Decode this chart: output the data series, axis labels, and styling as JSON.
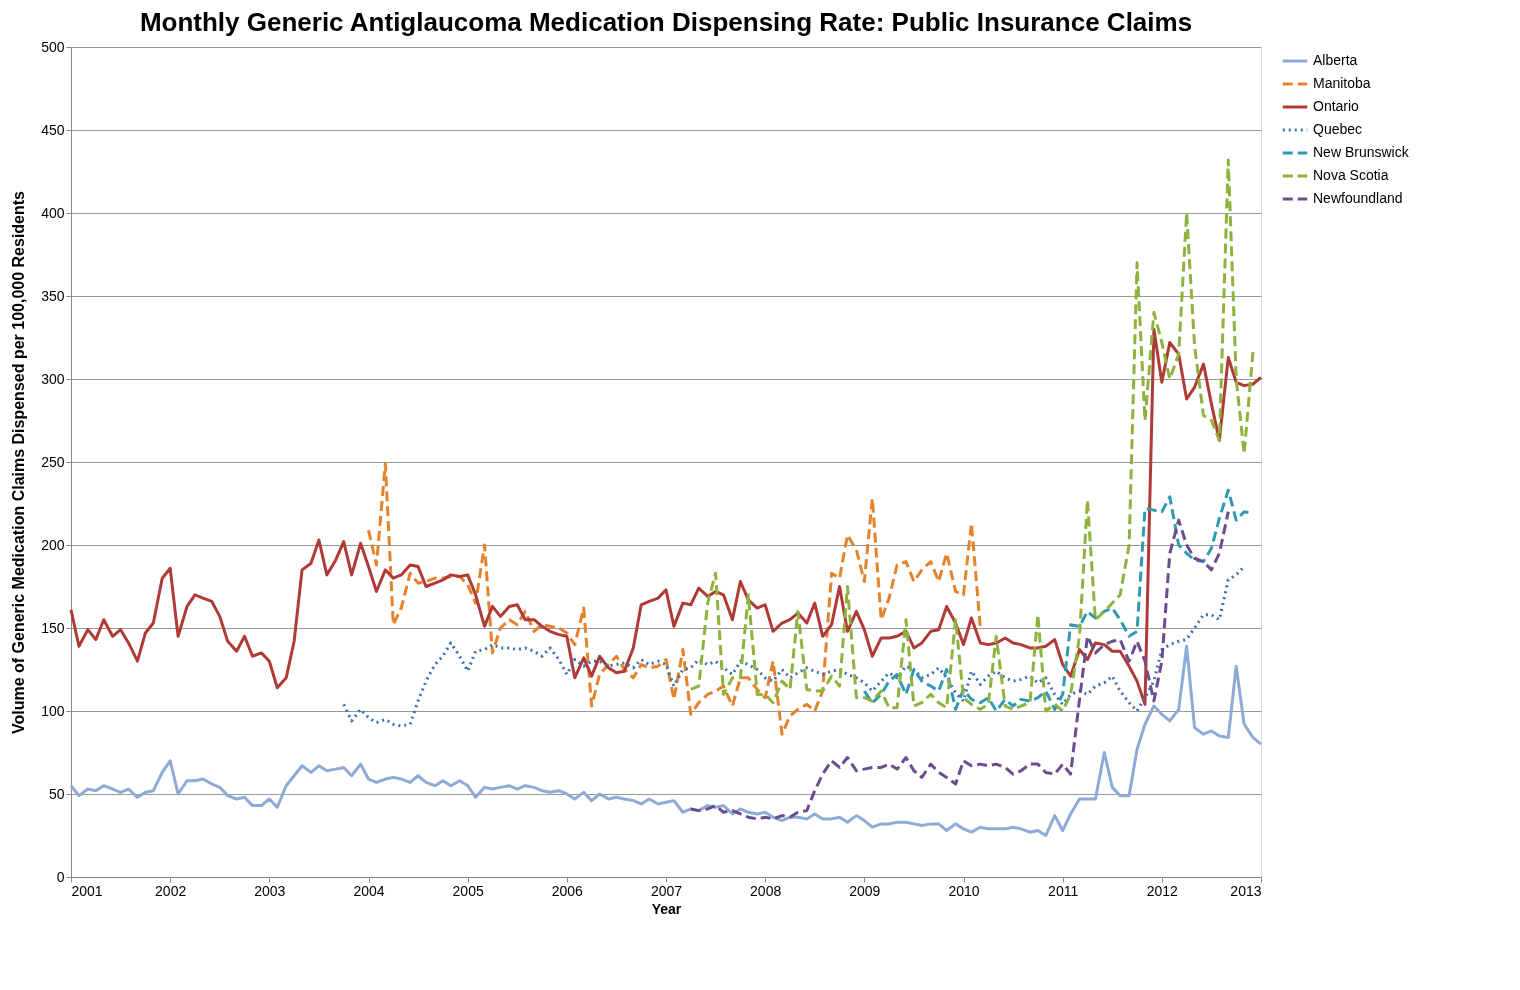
{
  "chart_data": {
    "type": "line",
    "title": "Monthly Generic Antiglaucoma Medication Dispensing Rate: Public Insurance Claims",
    "xlabel": "Year",
    "ylabel": "Volume of Generic Medication Claims Dispensed per 100,000 Residents",
    "xlim": [
      2001,
      2013
    ],
    "xticks": [
      2001,
      2002,
      2003,
      2004,
      2005,
      2006,
      2007,
      2008,
      2009,
      2010,
      2011,
      2012,
      2013
    ],
    "ylim": [
      0,
      500
    ],
    "yticks": [
      0,
      50,
      100,
      150,
      200,
      250,
      300,
      350,
      400,
      450,
      500
    ],
    "grid": "y",
    "legend": "right",
    "marker": "none",
    "x": [
      2001,
      2001.08,
      2001.17,
      2001.25,
      2001.33,
      2001.42,
      2001.5,
      2001.58,
      2001.67,
      2001.75,
      2001.83,
      2001.92,
      2002,
      2002.08,
      2002.17,
      2002.25,
      2002.33,
      2002.42,
      2002.5,
      2002.58,
      2002.67,
      2002.75,
      2002.83,
      2002.92,
      2003,
      2003.08,
      2003.17,
      2003.25,
      2003.33,
      2003.42,
      2003.5,
      2003.58,
      2003.67,
      2003.75,
      2003.83,
      2003.92,
      2004,
      2004.08,
      2004.17,
      2004.25,
      2004.33,
      2004.42,
      2004.5,
      2004.58,
      2004.67,
      2004.75,
      2004.83,
      2004.92,
      2005,
      2005.08,
      2005.17,
      2005.25,
      2005.33,
      2005.42,
      2005.5,
      2005.58,
      2005.67,
      2005.75,
      2005.83,
      2005.92,
      2006,
      2006.08,
      2006.17,
      2006.25,
      2006.33,
      2006.42,
      2006.5,
      2006.58,
      2006.67,
      2006.75,
      2006.83,
      2006.92,
      2007,
      2007.08,
      2007.17,
      2007.25,
      2007.33,
      2007.42,
      2007.5,
      2007.58,
      2007.67,
      2007.75,
      2007.83,
      2007.92,
      2008,
      2008.08,
      2008.17,
      2008.25,
      2008.33,
      2008.42,
      2008.5,
      2008.58,
      2008.67,
      2008.75,
      2008.83,
      2008.92,
      2009,
      2009.08,
      2009.17,
      2009.25,
      2009.33,
      2009.42,
      2009.5,
      2009.58,
      2009.67,
      2009.75,
      2009.83,
      2009.92,
      2010,
      2010.08,
      2010.17,
      2010.25,
      2010.33,
      2010.42,
      2010.5,
      2010.58,
      2010.67,
      2010.75,
      2010.83,
      2010.92,
      2011,
      2011.08,
      2011.17,
      2011.25,
      2011.33,
      2011.42,
      2011.5,
      2011.58,
      2011.67,
      2011.75,
      2011.83,
      2011.92,
      2012,
      2012.08,
      2012.17,
      2012.25,
      2012.33,
      2012.42,
      2012.5,
      2012.58,
      2012.67,
      2012.75,
      2012.83,
      2012.92,
      2013
    ],
    "series": [
      {
        "name": "Alberta",
        "color": "#8eaad6",
        "line_style": "solid",
        "values": [
          55,
          49,
          53,
          52,
          55,
          53,
          51,
          53,
          48,
          51,
          52,
          63,
          70,
          50,
          58,
          58,
          59,
          56,
          54,
          49,
          47,
          48,
          43,
          43,
          47,
          42,
          55,
          61,
          67,
          63,
          67,
          64,
          65,
          66,
          61,
          68,
          59,
          57,
          59,
          60,
          59,
          57,
          61,
          57,
          55,
          58,
          55,
          58,
          55,
          48,
          54,
          53,
          54,
          55,
          53,
          55,
          54,
          52,
          51,
          52,
          50,
          47,
          51,
          46,
          50,
          47,
          48,
          47,
          46,
          44,
          47,
          44,
          45,
          46,
          39,
          41,
          40,
          43,
          42,
          43,
          38,
          41,
          39,
          38,
          39,
          36,
          34,
          36,
          36,
          35,
          38,
          35,
          35,
          36,
          33,
          37,
          34,
          30,
          32,
          32,
          33,
          33,
          32,
          31,
          32,
          32,
          28,
          32,
          29,
          27,
          30,
          29,
          29,
          29,
          30,
          29,
          27,
          28,
          25,
          37,
          28,
          38,
          47,
          47,
          47,
          75,
          54,
          49,
          49,
          77,
          92,
          103,
          98,
          94,
          101,
          139,
          90,
          86,
          88,
          85,
          84,
          127,
          92,
          84,
          80
        ]
      },
      {
        "name": "Manitoba",
        "color": "#e4832a",
        "line_style": "dashed",
        "x": [
          2004,
          2004.08,
          2004.17,
          2004.25,
          2004.33,
          2004.42,
          2004.5,
          2004.58,
          2004.67,
          2004.75,
          2004.83,
          2004.92,
          2005,
          2005.08,
          2005.17,
          2005.25,
          2005.33,
          2005.42,
          2005.5,
          2005.58,
          2005.67,
          2005.75,
          2005.83,
          2005.92,
          2006,
          2006.08,
          2006.17,
          2006.25,
          2006.33,
          2006.42,
          2006.5,
          2006.58,
          2006.67,
          2006.75,
          2006.83,
          2006.92,
          2007,
          2007.08,
          2007.17,
          2007.25,
          2007.33,
          2007.42,
          2007.5,
          2007.58,
          2007.67,
          2007.75,
          2007.83,
          2007.92,
          2008,
          2008.08,
          2008.17,
          2008.25,
          2008.33,
          2008.42,
          2008.5,
          2008.58,
          2008.67,
          2008.75,
          2008.83,
          2008.92,
          2009,
          2009.08,
          2009.17,
          2009.25,
          2009.33,
          2009.42,
          2009.5,
          2009.58,
          2009.67,
          2009.75,
          2009.83,
          2009.92,
          2010,
          2010.08,
          2010.17
        ],
        "values": [
          209,
          188,
          249,
          152,
          162,
          183,
          177,
          178,
          180,
          180,
          181,
          181,
          176,
          165,
          200,
          135,
          150,
          155,
          152,
          160,
          148,
          152,
          151,
          150,
          147,
          140,
          162,
          103,
          122,
          128,
          133,
          125,
          120,
          128,
          126,
          127,
          131,
          107,
          137,
          98,
          105,
          110,
          112,
          115,
          103,
          120,
          120,
          113,
          108,
          130,
          86,
          97,
          101,
          104,
          100,
          112,
          183,
          180,
          206,
          197,
          178,
          228,
          155,
          168,
          188,
          190,
          178,
          185,
          190,
          178,
          195,
          172,
          170,
          213,
          150
        ]
      },
      {
        "name": "Ontario",
        "color": "#b03a36",
        "line_style": "solid",
        "values": [
          161,
          139,
          149,
          143,
          155,
          145,
          149,
          141,
          130,
          147,
          153,
          180,
          186,
          145,
          163,
          170,
          168,
          166,
          157,
          142,
          136,
          145,
          133,
          135,
          130,
          114,
          120,
          142,
          185,
          189,
          203,
          182,
          191,
          202,
          182,
          201,
          187,
          172,
          185,
          180,
          182,
          188,
          187,
          175,
          177,
          179,
          182,
          181,
          182,
          170,
          151,
          163,
          157,
          163,
          164,
          155,
          155,
          151,
          148,
          146,
          145,
          120,
          132,
          121,
          133,
          126,
          123,
          124,
          138,
          164,
          166,
          168,
          173,
          151,
          165,
          164,
          174,
          169,
          172,
          170,
          155,
          178,
          167,
          162,
          164,
          148,
          153,
          155,
          159,
          153,
          165,
          145,
          152,
          175,
          148,
          160,
          149,
          133,
          144,
          144,
          145,
          148,
          138,
          141,
          148,
          149,
          163,
          153,
          140,
          156,
          141,
          140,
          141,
          144,
          141,
          140,
          138,
          138,
          139,
          143,
          128,
          121,
          137,
          131,
          141,
          140,
          136,
          136,
          127,
          118,
          104,
          330,
          298,
          322,
          315,
          288,
          295,
          309,
          285,
          263,
          313,
          298,
          296,
          297,
          301
        ]
      },
      {
        "name": "Quebec",
        "color": "#3a6fb0",
        "line_style": "dotted",
        "x": [
          2003.75,
          2003.83,
          2003.92,
          2004,
          2004.08,
          2004.17,
          2004.25,
          2004.33,
          2004.42,
          2004.5,
          2004.58,
          2004.67,
          2004.75,
          2004.83,
          2004.92,
          2005,
          2005.08,
          2005.17,
          2005.25,
          2005.33,
          2005.42,
          2005.5,
          2005.58,
          2005.67,
          2005.75,
          2005.83,
          2005.92,
          2006,
          2006.08,
          2006.17,
          2006.25,
          2006.33,
          2006.42,
          2006.5,
          2006.58,
          2006.67,
          2006.75,
          2006.83,
          2006.92,
          2007,
          2007.08,
          2007.17,
          2007.25,
          2007.33,
          2007.42,
          2007.5,
          2007.58,
          2007.67,
          2007.75,
          2007.83,
          2007.92,
          2008,
          2008.08,
          2008.17,
          2008.25,
          2008.33,
          2008.42,
          2008.5,
          2008.58,
          2008.67,
          2008.75,
          2008.83,
          2008.92,
          2009,
          2009.08,
          2009.17,
          2009.25,
          2009.33,
          2009.42,
          2009.5,
          2009.58,
          2009.67,
          2009.75,
          2009.83,
          2009.92,
          2010,
          2010.08,
          2010.17,
          2010.25,
          2010.33,
          2010.42,
          2010.5,
          2010.58,
          2010.67,
          2010.75,
          2010.83,
          2010.92,
          2011,
          2011.08,
          2011.17,
          2011.25,
          2011.33,
          2011.42,
          2011.5,
          2011.58,
          2011.67,
          2011.75,
          2011.83,
          2011.92,
          2012,
          2012.08,
          2012.17,
          2012.25,
          2012.33,
          2012.42,
          2012.5,
          2012.58,
          2012.67,
          2012.75,
          2012.83
        ],
        "values": [
          104,
          94,
          101,
          96,
          93,
          95,
          92,
          91,
          92,
          106,
          118,
          128,
          133,
          141,
          133,
          124,
          136,
          137,
          140,
          138,
          138,
          137,
          138,
          136,
          133,
          138,
          131,
          122,
          131,
          127,
          130,
          130,
          127,
          128,
          129,
          126,
          131,
          128,
          130,
          128,
          115,
          125,
          126,
          131,
          128,
          130,
          126,
          122,
          130,
          128,
          125,
          120,
          118,
          125,
          120,
          123,
          126,
          124,
          122,
          124,
          125,
          122,
          120,
          117,
          112,
          118,
          123,
          120,
          127,
          125,
          120,
          122,
          126,
          120,
          111,
          106,
          124,
          116,
          121,
          124,
          120,
          118,
          119,
          121,
          117,
          120,
          110,
          104,
          110,
          112,
          110,
          115,
          117,
          121,
          112,
          105,
          100,
          108,
          118,
          137,
          140,
          142,
          143,
          150,
          158,
          158,
          155,
          179,
          182,
          187
        ]
      },
      {
        "name": "New Brunswick",
        "color": "#2e9ab4",
        "line_style": "dashed",
        "x": [
          2009,
          2009.08,
          2009.17,
          2009.25,
          2009.33,
          2009.42,
          2009.5,
          2009.58,
          2009.67,
          2009.75,
          2009.83,
          2009.92,
          2010,
          2010.08,
          2010.17,
          2010.25,
          2010.33,
          2010.42,
          2010.5,
          2010.58,
          2010.67,
          2010.75,
          2010.83,
          2010.92,
          2011,
          2011.08,
          2011.17,
          2011.25,
          2011.33,
          2011.42,
          2011.5,
          2011.58,
          2011.67,
          2011.75,
          2011.83,
          2011.92,
          2012,
          2012.08,
          2012.17,
          2012.25,
          2012.33,
          2012.42,
          2012.5,
          2012.58,
          2012.67,
          2012.75,
          2012.83,
          2012.92
        ],
        "values": [
          112,
          105,
          110,
          118,
          122,
          110,
          125,
          118,
          115,
          112,
          125,
          101,
          113,
          107,
          105,
          108,
          100,
          107,
          103,
          107,
          106,
          108,
          112,
          101,
          110,
          152,
          151,
          160,
          156,
          160,
          162,
          155,
          145,
          148,
          222,
          221,
          220,
          229,
          200,
          195,
          191,
          190,
          198,
          216,
          233,
          215,
          220,
          219
        ]
      },
      {
        "name": "Nova Scotia",
        "color": "#8db33d",
        "line_style": "dashed",
        "x": [
          2007.25,
          2007.33,
          2007.42,
          2007.5,
          2007.58,
          2007.67,
          2007.75,
          2007.83,
          2007.92,
          2008,
          2008.08,
          2008.17,
          2008.25,
          2008.33,
          2008.42,
          2008.5,
          2008.58,
          2008.67,
          2008.75,
          2008.83,
          2008.92,
          2009,
          2009.08,
          2009.17,
          2009.25,
          2009.33,
          2009.42,
          2009.5,
          2009.58,
          2009.67,
          2009.75,
          2009.83,
          2009.92,
          2010,
          2010.08,
          2010.17,
          2010.25,
          2010.33,
          2010.42,
          2010.5,
          2010.58,
          2010.67,
          2010.75,
          2010.83,
          2010.92,
          2011,
          2011.08,
          2011.17,
          2011.25,
          2011.33,
          2011.42,
          2011.5,
          2011.58,
          2011.67,
          2011.75,
          2011.83,
          2011.92,
          2012,
          2012.08,
          2012.17,
          2012.25,
          2012.33,
          2012.42,
          2012.5,
          2012.58,
          2012.67,
          2012.75,
          2012.83,
          2012.92
        ],
        "values": [
          113,
          115,
          165,
          183,
          110,
          120,
          120,
          170,
          110,
          110,
          105,
          118,
          113,
          160,
          113,
          112,
          112,
          121,
          115,
          175,
          108,
          108,
          106,
          112,
          102,
          102,
          155,
          103,
          105,
          110,
          105,
          102,
          155,
          108,
          104,
          101,
          104,
          145,
          103,
          101,
          103,
          105,
          158,
          100,
          104,
          100,
          110,
          145,
          227,
          155,
          160,
          165,
          170,
          200,
          370,
          275,
          340,
          322,
          300,
          315,
          400,
          320,
          278,
          275,
          263,
          432,
          300,
          255,
          317
        ]
      },
      {
        "name": "Newfoundland",
        "color": "#6b4c8f",
        "line_style": "dashed",
        "x": [
          2007.25,
          2007.33,
          2007.42,
          2007.5,
          2007.58,
          2007.67,
          2007.75,
          2007.83,
          2007.92,
          2008,
          2008.08,
          2008.17,
          2008.25,
          2008.33,
          2008.42,
          2008.5,
          2008.58,
          2008.67,
          2008.75,
          2008.83,
          2008.92,
          2009,
          2009.08,
          2009.17,
          2009.25,
          2009.33,
          2009.42,
          2009.5,
          2009.58,
          2009.67,
          2009.75,
          2009.83,
          2009.92,
          2010,
          2010.08,
          2010.17,
          2010.25,
          2010.33,
          2010.42,
          2010.5,
          2010.58,
          2010.67,
          2010.75,
          2010.83,
          2010.92,
          2011,
          2011.08,
          2011.17,
          2011.25,
          2011.33,
          2011.42,
          2011.5,
          2011.58,
          2011.67,
          2011.75,
          2011.83,
          2011.92,
          2012,
          2012.08,
          2012.17,
          2012.25,
          2012.33,
          2012.42,
          2012.5,
          2012.58,
          2012.67
        ],
        "values": [
          41,
          40,
          41,
          43,
          39,
          40,
          38,
          36,
          35,
          36,
          35,
          37,
          36,
          39,
          40,
          52,
          62,
          70,
          66,
          72,
          64,
          65,
          66,
          66,
          68,
          65,
          72,
          64,
          60,
          68,
          63,
          60,
          56,
          70,
          67,
          68,
          67,
          68,
          66,
          62,
          64,
          68,
          68,
          63,
          62,
          68,
          62,
          107,
          145,
          135,
          140,
          142,
          143,
          130,
          142,
          130,
          106,
          130,
          195,
          215,
          200,
          192,
          190,
          185,
          195,
          220
        ]
      }
    ]
  }
}
